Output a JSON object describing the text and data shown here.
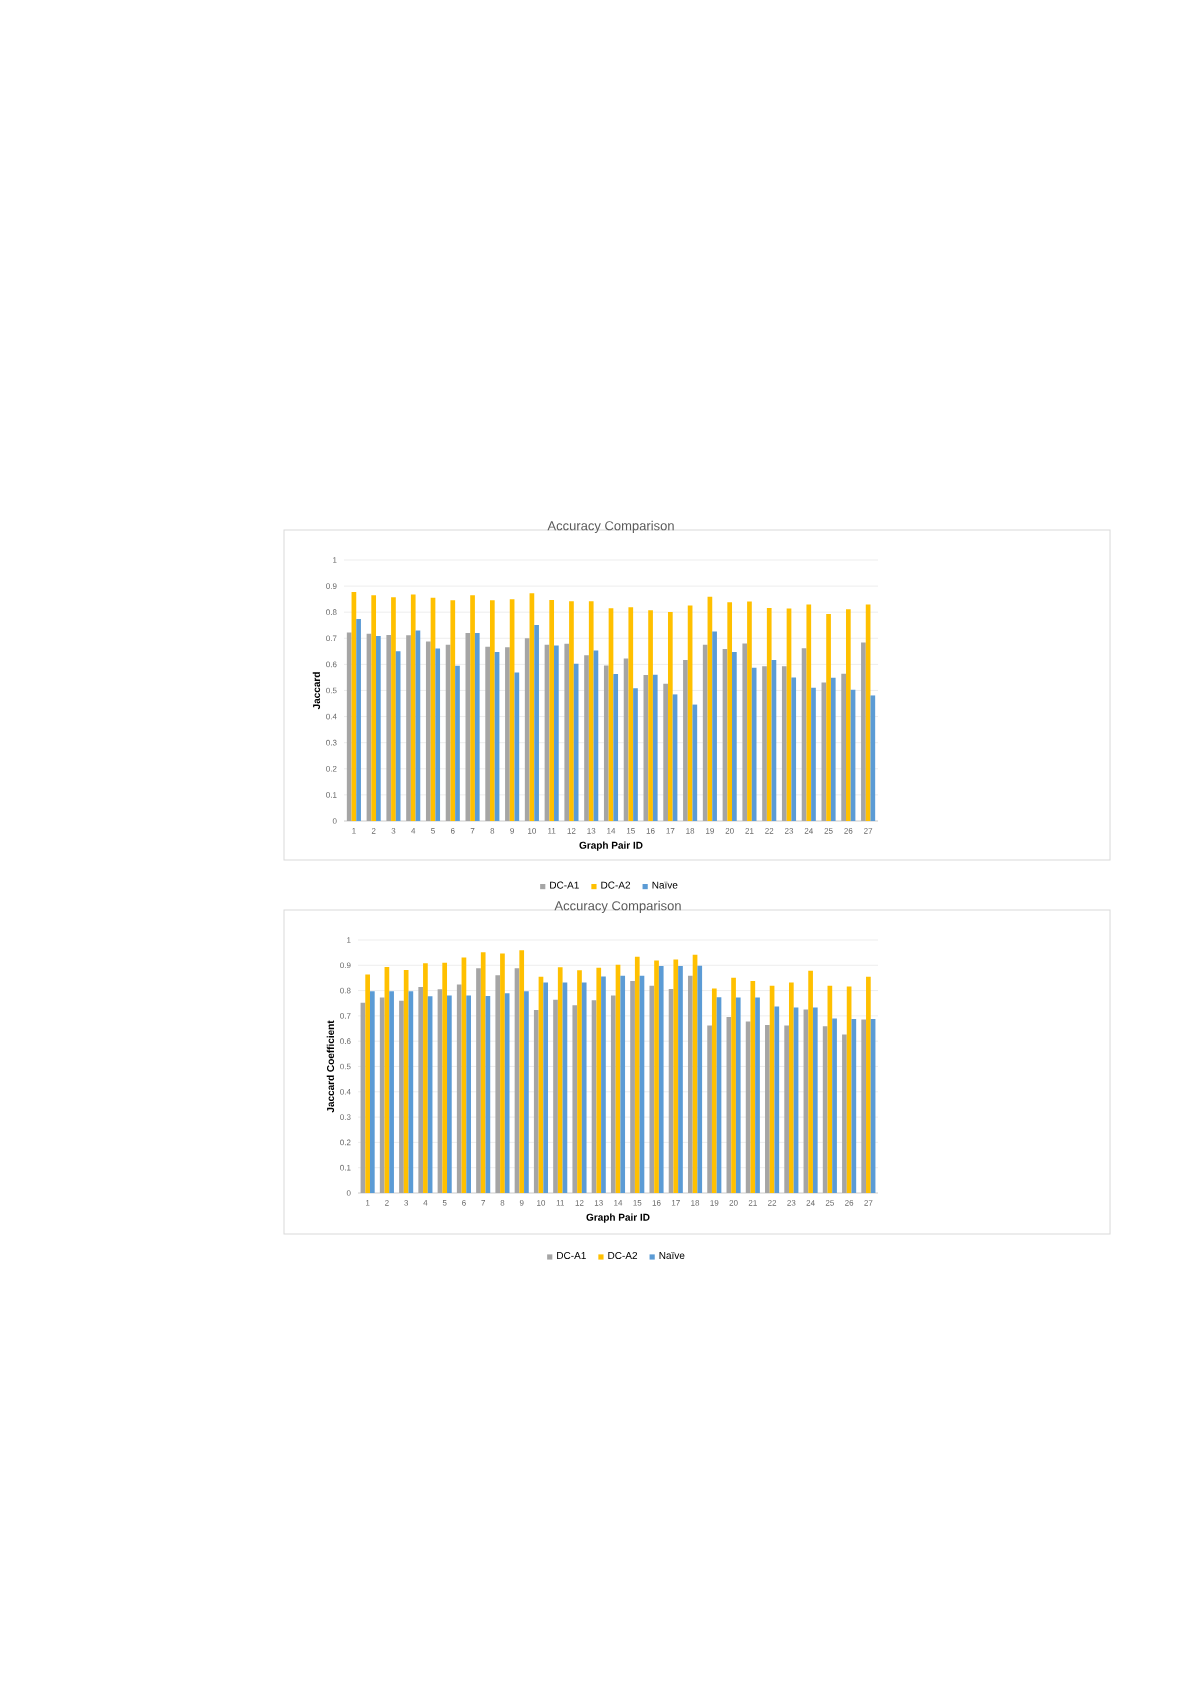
{
  "chart_data": [
    {
      "type": "bar",
      "title": "Accuracy Comparison",
      "xlabel": "Graph Pair ID",
      "ylabel": "Jaccard",
      "categories": [
        "1",
        "2",
        "3",
        "4",
        "5",
        "6",
        "7",
        "8",
        "9",
        "10",
        "11",
        "12",
        "13",
        "14",
        "15",
        "16",
        "17",
        "18",
        "19",
        "20",
        "21",
        "22",
        "23",
        "24",
        "25",
        "26",
        "27"
      ],
      "series": [
        {
          "name": "DC-A1",
          "color": "#a5a5a5",
          "values": [
            0.722,
            0.717,
            0.713,
            0.712,
            0.688,
            0.675,
            0.72,
            0.668,
            0.666,
            0.7,
            0.675,
            0.679,
            0.635,
            0.596,
            0.623,
            0.559,
            0.526,
            0.617,
            0.675,
            0.659,
            0.68,
            0.593,
            0.593,
            0.662,
            0.531,
            0.564,
            0.684
          ]
        },
        {
          "name": "DC-A2",
          "color": "#ffc000",
          "values": [
            0.877,
            0.865,
            0.857,
            0.868,
            0.855,
            0.846,
            0.865,
            0.846,
            0.85,
            0.873,
            0.847,
            0.842,
            0.842,
            0.815,
            0.819,
            0.807,
            0.801,
            0.826,
            0.859,
            0.838,
            0.841,
            0.816,
            0.814,
            0.829,
            0.793,
            0.811,
            0.829
          ]
        },
        {
          "name": "Naïve",
          "color": "#5b9bd5",
          "values": [
            0.774,
            0.709,
            0.65,
            0.73,
            0.661,
            0.595,
            0.72,
            0.647,
            0.569,
            0.751,
            0.672,
            0.602,
            0.653,
            0.563,
            0.509,
            0.56,
            0.485,
            0.446,
            0.726,
            0.647,
            0.587,
            0.617,
            0.55,
            0.51,
            0.549,
            0.503,
            0.481
          ]
        }
      ],
      "ylim": [
        0,
        1
      ],
      "yticks": [
        0,
        0.1,
        0.2,
        0.3,
        0.4,
        0.5,
        0.6,
        0.7,
        0.8,
        0.9,
        1
      ],
      "grid": "y",
      "legend": "bottom"
    },
    {
      "type": "bar",
      "title": "Accuracy Comparison",
      "xlabel": "Graph Pair ID",
      "ylabel": "Jaccard Coefficient",
      "categories": [
        "1",
        "2",
        "3",
        "4",
        "5",
        "6",
        "7",
        "8",
        "9",
        "10",
        "11",
        "12",
        "13",
        "14",
        "15",
        "16",
        "17",
        "18",
        "19",
        "20",
        "21",
        "22",
        "23",
        "24",
        "25",
        "26",
        "27"
      ],
      "series": [
        {
          "name": "DC-A1",
          "color": "#a5a5a5",
          "values": [
            0.752,
            0.773,
            0.76,
            0.814,
            0.805,
            0.824,
            0.888,
            0.861,
            0.888,
            0.723,
            0.764,
            0.742,
            0.762,
            0.781,
            0.838,
            0.819,
            0.806,
            0.859,
            0.662,
            0.696,
            0.678,
            0.664,
            0.662,
            0.725,
            0.659,
            0.626,
            0.686
          ]
        },
        {
          "name": "DC-A2",
          "color": "#ffc000",
          "values": [
            0.864,
            0.893,
            0.881,
            0.908,
            0.91,
            0.931,
            0.952,
            0.947,
            0.959,
            0.855,
            0.892,
            0.88,
            0.89,
            0.902,
            0.934,
            0.919,
            0.923,
            0.942,
            0.808,
            0.851,
            0.838,
            0.819,
            0.832,
            0.878,
            0.819,
            0.816,
            0.855
          ]
        },
        {
          "name": "Naïve",
          "color": "#5b9bd5",
          "values": [
            0.797,
            0.797,
            0.797,
            0.778,
            0.781,
            0.781,
            0.779,
            0.789,
            0.797,
            0.832,
            0.832,
            0.832,
            0.856,
            0.859,
            0.859,
            0.897,
            0.897,
            0.898,
            0.774,
            0.773,
            0.773,
            0.737,
            0.733,
            0.733,
            0.69,
            0.688,
            0.688
          ]
        }
      ],
      "ylim": [
        0,
        1
      ],
      "yticks": [
        0,
        0.1,
        0.2,
        0.3,
        0.4,
        0.5,
        0.6,
        0.7,
        0.8,
        0.9,
        1
      ],
      "grid": "y",
      "legend": "bottom"
    }
  ]
}
